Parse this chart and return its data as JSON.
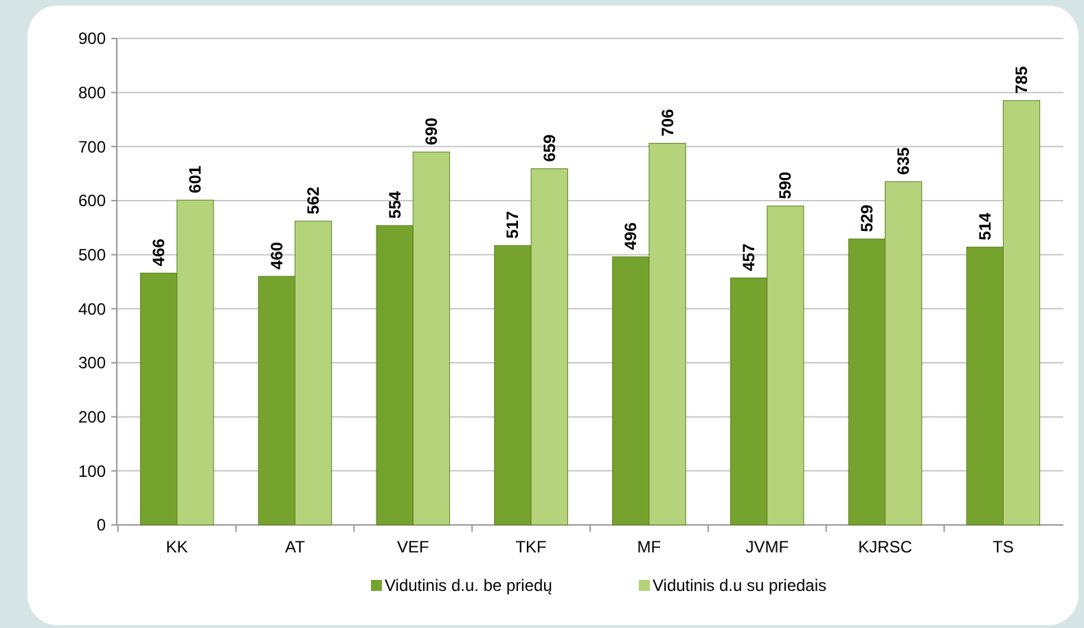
{
  "chart_data": {
    "type": "bar",
    "categories": [
      "KK",
      "AT",
      "VEF",
      "TKF",
      "MF",
      "JVMF",
      "KJRSC",
      "TS"
    ],
    "series": [
      {
        "name": "Vidutinis d.u. be priedų",
        "color": "#76a22e",
        "values": [
          466,
          460,
          554,
          517,
          496,
          457,
          529,
          514
        ]
      },
      {
        "name": "Vidutinis d.u su priedais",
        "color": "#b4d37a",
        "values": [
          601,
          562,
          690,
          659,
          706,
          590,
          635,
          785
        ]
      }
    ],
    "ylim": [
      0,
      900
    ],
    "yticks": [
      0,
      100,
      200,
      300,
      400,
      500,
      600,
      700,
      800,
      900
    ],
    "grid": "y",
    "legend": "bottom",
    "data_labels": true
  }
}
